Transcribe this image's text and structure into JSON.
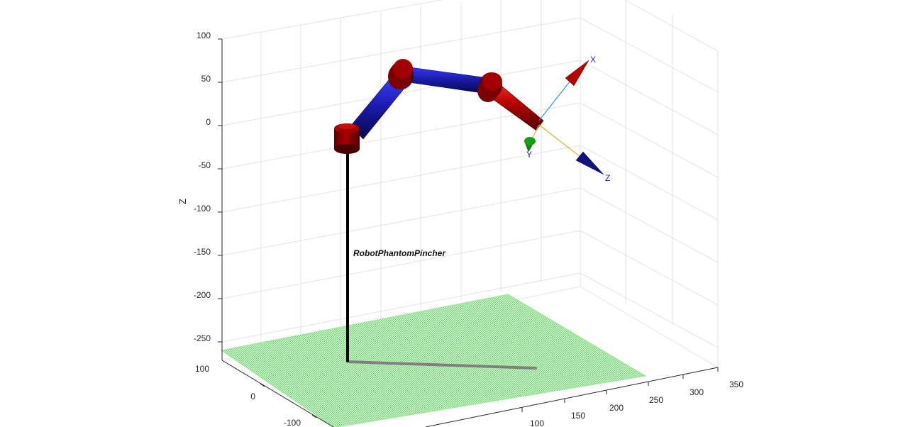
{
  "figure": {
    "z_axis_label": "Z",
    "z_ticks": [
      "100",
      "50",
      "0",
      "-50",
      "-100",
      "-150",
      "-200",
      "-250"
    ],
    "x_ticks": [
      "100",
      "0",
      "-100"
    ],
    "y_ticks": [
      "100",
      "150",
      "200",
      "250",
      "300",
      "350"
    ]
  },
  "robot": {
    "name": "RobotPhantomPincher",
    "colors": {
      "joint": "#8b0000",
      "link": "#1a1aa8",
      "pedestal": "#000000",
      "floor": "#9be59b",
      "shadow": "#808080"
    }
  },
  "end_effector_frame": {
    "x_label": "X",
    "y_label": "Y",
    "z_label": "Z",
    "colors": {
      "x": "#b30000",
      "y": "#0a8a0a",
      "z": "#101080",
      "x_line": "#2a9ac8",
      "z_line": "#e0b040"
    }
  }
}
